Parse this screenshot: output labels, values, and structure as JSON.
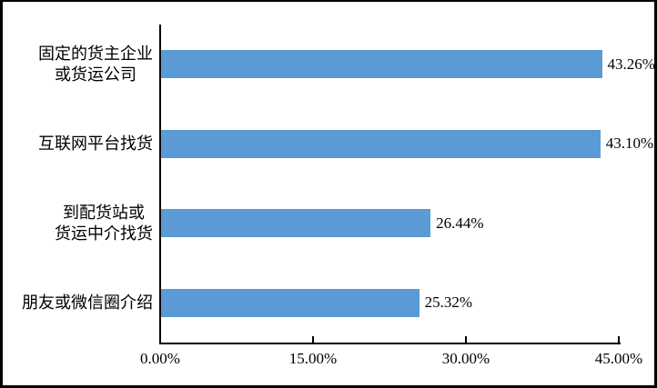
{
  "chart_data": {
    "type": "bar",
    "orientation": "horizontal",
    "title": "",
    "categories": [
      "固定的货主企业\n或货运公司",
      "互联网平台找货",
      "到配货站或\n货运中介找货",
      "朋友或微信圈介绍"
    ],
    "values": [
      43.26,
      43.1,
      26.44,
      25.32
    ],
    "value_labels": [
      "43.26%",
      "43.10%",
      "26.44%",
      "25.32%"
    ],
    "x_axis": {
      "min": 0,
      "max": 45,
      "ticks": [
        {
          "value": 0,
          "label": "0.00%"
        },
        {
          "value": 15,
          "label": "15.00%"
        },
        {
          "value": 30,
          "label": "30.00%"
        },
        {
          "value": 45,
          "label": "45.00%"
        }
      ]
    },
    "grid": false,
    "legend": "none",
    "colors": {
      "bar": "#5B9BD5",
      "axis": "#000000",
      "text": "#000000",
      "background": "#FFFFFF",
      "frame_border": "#000000"
    }
  }
}
